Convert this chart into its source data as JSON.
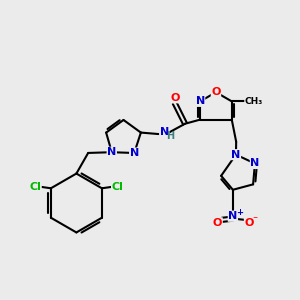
{
  "background_color": "#ebebeb",
  "bond_color": "#000000",
  "atom_colors": {
    "N": "#0000cc",
    "O": "#ff0000",
    "Cl": "#00bb00",
    "C": "#000000",
    "H": "#408080"
  },
  "figsize": [
    3.0,
    3.0
  ],
  "dpi": 100,
  "lw": 1.5,
  "fs": 8.0,
  "fs_small": 7.0
}
